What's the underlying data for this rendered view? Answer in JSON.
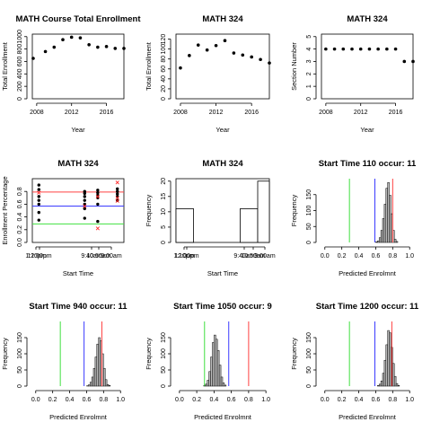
{
  "chart_data": [
    {
      "type": "scatter",
      "title": "MATH Course Total Enrollment",
      "xlabel": "Year",
      "ylabel": "Total Enrollment",
      "xlim": [
        2007.5,
        2018
      ],
      "ylim": [
        0,
        1000
      ],
      "x_ticks": [
        "2008",
        "2012",
        "2016"
      ],
      "y_ticks": [
        "0",
        "200",
        "400",
        "600",
        "800",
        "1000"
      ],
      "x": [
        2007.6,
        2009,
        2010,
        2011,
        2012,
        2013,
        2014,
        2015,
        2016,
        2017,
        2018
      ],
      "y": [
        650,
        760,
        830,
        950,
        990,
        980,
        870,
        830,
        840,
        810,
        810
      ]
    },
    {
      "type": "scatter",
      "title": "MATH 324",
      "xlabel": "Year",
      "ylabel": "Total Enrollment",
      "xlim": [
        2007.5,
        2018
      ],
      "ylim": [
        0,
        130
      ],
      "x_ticks": [
        "2008",
        "2012",
        "2016"
      ],
      "y_ticks": [
        "0",
        "20",
        "40",
        "60",
        "80",
        "100",
        "120"
      ],
      "x": [
        2008,
        2009,
        2010,
        2011,
        2012,
        2013,
        2014,
        2015,
        2016,
        2017,
        2018
      ],
      "y": [
        62,
        87,
        108,
        98,
        107,
        117,
        92,
        88,
        84,
        79,
        72
      ]
    },
    {
      "type": "scatter",
      "title": "MATH 324",
      "xlabel": "Year",
      "ylabel": "Section Number",
      "xlim": [
        2007.5,
        2018
      ],
      "ylim": [
        0,
        5
      ],
      "x_ticks": [
        "2008",
        "2012",
        "2016"
      ],
      "y_ticks": [
        "0",
        "1",
        "2",
        "3",
        "4",
        "5"
      ],
      "x": [
        2008,
        2009,
        2010,
        2011,
        2012,
        2013,
        2014,
        2015,
        2016,
        2017,
        2018
      ],
      "y": [
        4,
        4,
        4,
        4,
        4,
        4,
        4,
        4,
        4,
        3,
        3
      ]
    },
    {
      "type": "scatter",
      "title": "MATH 324",
      "xlabel": "Start Time",
      "ylabel": "Enrollment Percentage",
      "ylim": [
        0,
        1
      ],
      "y_ticks": [
        "0.0",
        "0.2",
        "0.4",
        "0.6",
        "0.8"
      ],
      "x_tick_labels": [
        "1:10pm",
        "12:00pm",
        "9:40am",
        "10:50am",
        "9:00am"
      ],
      "hlines": [
        {
          "y": 0.79,
          "color": "#ff4040"
        },
        {
          "y": 0.57,
          "color": "#3b3bff"
        },
        {
          "y": 0.29,
          "color": "#40e040"
        }
      ],
      "series": [
        {
          "marker": "dot",
          "color": "#000000",
          "x": [
            0.2,
            0.2,
            0.2,
            0.2,
            0.2,
            0.2,
            0.2,
            0.9,
            0.9,
            0.9,
            0.9,
            0.9,
            0.9,
            0.9,
            1.1,
            1.1,
            1.1,
            1.1,
            1.1,
            1.1,
            1.4,
            1.4,
            1.4,
            1.4,
            1.4
          ],
          "y": [
            0.9,
            0.83,
            0.72,
            0.6,
            0.47,
            0.35,
            0.66,
            0.8,
            0.77,
            0.72,
            0.6,
            0.53,
            0.38,
            0.66,
            0.82,
            0.78,
            0.74,
            0.7,
            0.6,
            0.33,
            0.84,
            0.8,
            0.76,
            0.72,
            0.66
          ]
        },
        {
          "marker": "x",
          "color": "#ff2020",
          "x": [
            0.2,
            0.9,
            1.1,
            1.1,
            1.4,
            1.4,
            1.4
          ],
          "y": [
            0.78,
            0.57,
            0.72,
            0.22,
            0.94,
            0.7,
            0.65
          ]
        }
      ]
    },
    {
      "type": "bar",
      "title": "MATH 324",
      "xlabel": "Start Time",
      "ylabel": "Frequency",
      "ylim": [
        0,
        20
      ],
      "y_ticks": [
        "0",
        "5",
        "10",
        "15",
        "20"
      ],
      "x_tick_labels": [
        "1:10pm",
        "12:00pm",
        "9:40am",
        "10:50am",
        "9:00am"
      ],
      "bins": [
        [
          0,
          0.3,
          11
        ],
        [
          0.3,
          1.1,
          0
        ],
        [
          1.1,
          1.4,
          11
        ],
        [
          1.4,
          1.6,
          20
        ]
      ]
    },
    {
      "type": "histogram",
      "title": "Start Time 110 occur: 11",
      "xlabel": "Predicted Enrolmnt",
      "ylabel": "Frequency",
      "xlim": [
        0,
        1
      ],
      "ylim": [
        0,
        200
      ],
      "x_ticks": [
        "0.0",
        "0.2",
        "0.4",
        "0.6",
        "0.8",
        "1.0"
      ],
      "y_ticks": [
        "0",
        "50",
        "100",
        "150"
      ],
      "bin_start": 0.6,
      "bin_width": 0.02,
      "counts": [
        2,
        5,
        15,
        38,
        75,
        120,
        170,
        188,
        148,
        90,
        38,
        10,
        3
      ],
      "vlines": [
        {
          "x": 0.29,
          "color": "#40e040"
        },
        {
          "x": 0.59,
          "color": "#3b3bff"
        },
        {
          "x": 0.8,
          "color": "#ff4040"
        }
      ]
    },
    {
      "type": "histogram",
      "title": "Start Time 940 occur: 11",
      "xlabel": "Predicted Enrolmnt",
      "ylabel": "Frequency",
      "xlim": [
        0,
        1
      ],
      "ylim": [
        0,
        200
      ],
      "x_ticks": [
        "0.0",
        "0.2",
        "0.4",
        "0.6",
        "0.8",
        "1.0"
      ],
      "y_ticks": [
        "0",
        "50",
        "100",
        "150"
      ],
      "bin_start": 0.6,
      "bin_width": 0.02,
      "counts": [
        1,
        4,
        12,
        28,
        55,
        90,
        130,
        150,
        140,
        100,
        55,
        20,
        5,
        2
      ],
      "vlines": [
        {
          "x": 0.29,
          "color": "#40e040"
        },
        {
          "x": 0.57,
          "color": "#3b3bff"
        },
        {
          "x": 0.78,
          "color": "#ff4040"
        }
      ]
    },
    {
      "type": "histogram",
      "title": "Start Time 1050 occur: 9",
      "xlabel": "Predicted Enrolmnt",
      "ylabel": "Frequency",
      "xlim": [
        0,
        1
      ],
      "ylim": [
        0,
        200
      ],
      "x_ticks": [
        "0.0",
        "0.2",
        "0.4",
        "0.6",
        "0.8",
        "1.0"
      ],
      "y_ticks": [
        "0",
        "50",
        "100",
        "150"
      ],
      "bin_start": 0.28,
      "bin_width": 0.02,
      "counts": [
        2,
        6,
        18,
        45,
        90,
        135,
        158,
        145,
        110,
        65,
        28,
        10,
        3
      ],
      "vlines": [
        {
          "x": 0.29,
          "color": "#40e040"
        },
        {
          "x": 0.57,
          "color": "#3b3bff"
        },
        {
          "x": 0.8,
          "color": "#ff4040"
        }
      ]
    },
    {
      "type": "histogram",
      "title": "Start Time 1200 occur: 11",
      "xlabel": "Predicted Enrolmnt",
      "ylabel": "Frequency",
      "xlim": [
        0,
        1
      ],
      "ylim": [
        0,
        200
      ],
      "x_ticks": [
        "0.0",
        "0.2",
        "0.4",
        "0.6",
        "0.8",
        "1.0"
      ],
      "y_ticks": [
        "0",
        "50",
        "100",
        "150"
      ],
      "bin_start": 0.62,
      "bin_width": 0.02,
      "counts": [
        2,
        6,
        16,
        40,
        80,
        128,
        172,
        165,
        120,
        70,
        30,
        8,
        2
      ],
      "vlines": [
        {
          "x": 0.29,
          "color": "#40e040"
        },
        {
          "x": 0.59,
          "color": "#3b3bff"
        },
        {
          "x": 0.79,
          "color": "#ff4040"
        }
      ]
    }
  ]
}
